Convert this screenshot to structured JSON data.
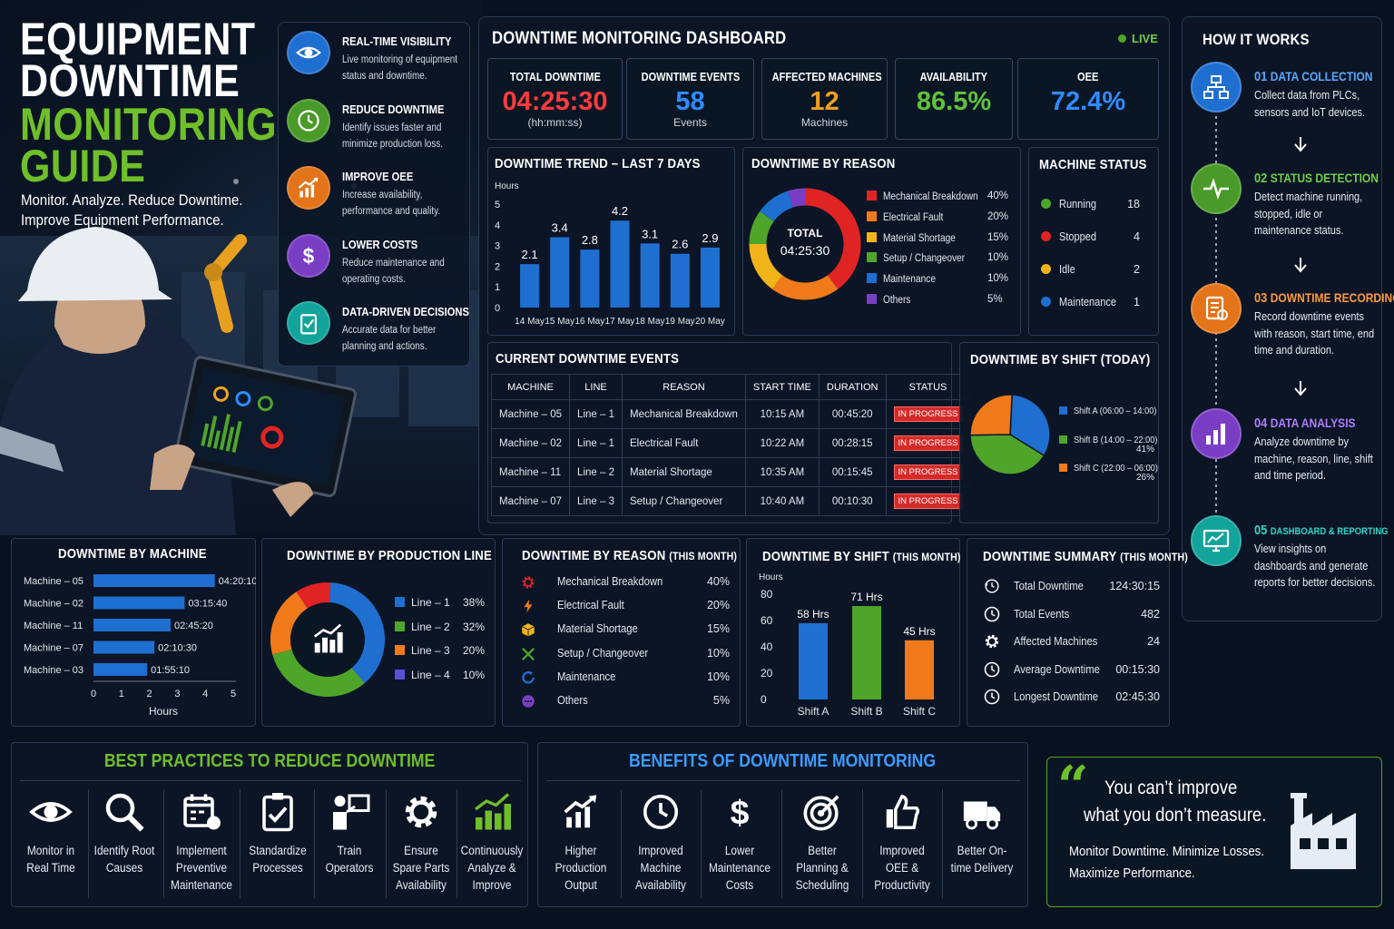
{
  "hero": {
    "title_lines": [
      "EQUIPMENT",
      "DOWNTIME",
      "MONITORING",
      "GUIDE"
    ],
    "tagline1": "Monitor. Analyze. Reduce Downtime.",
    "tagline2": "Improve Equipment Performance."
  },
  "features": [
    {
      "title": "REAL-TIME VISIBILITY",
      "desc": "Live monitoring of equipment status and downtime.",
      "icon": "eye-icon",
      "color": "#1f6fd1"
    },
    {
      "title": "REDUCE DOWNTIME",
      "desc": "Identify issues faster and minimize production loss.",
      "icon": "clock-icon",
      "color": "#4a9a2a"
    },
    {
      "title": "IMPROVE OEE",
      "desc": "Increase availability, performance and quality.",
      "icon": "chart-up-icon",
      "color": "#e3741a"
    },
    {
      "title": "LOWER COSTS",
      "desc": "Reduce maintenance and operating costs.",
      "icon": "dollar-icon",
      "color": "#7a3ec4"
    },
    {
      "title": "DATA-DRIVEN DECISIONS",
      "desc": "Accurate data for better planning and actions.",
      "icon": "clipboard-icon",
      "color": "#12a39a"
    }
  ],
  "dashboard": {
    "title": "DOWNTIME MONITORING DASHBOARD",
    "live": "LIVE",
    "kpis": [
      {
        "label": "TOTAL DOWNTIME",
        "value": "04:25:30",
        "sub": "(hh:mm:ss)",
        "color": "#ff3b3b"
      },
      {
        "label": "DOWNTIME EVENTS",
        "value": "58",
        "sub": "Events",
        "color": "#2f8cff"
      },
      {
        "label": "AFFECTED MACHINES",
        "value": "12",
        "sub": "Machines",
        "color": "#f0a020"
      },
      {
        "label": "AVAILABILITY",
        "value": "86.5%",
        "sub": "",
        "color": "#5fc23a"
      },
      {
        "label": "OEE",
        "value": "72.4%",
        "sub": "",
        "color": "#2f8cff"
      }
    ]
  },
  "trend": {
    "title": "DOWNTIME TREND – LAST 7 DAYS",
    "ylabel": "Hours",
    "yticks": [
      "5",
      "4",
      "3",
      "2",
      "1",
      "0"
    ]
  },
  "reason_donut": {
    "title": "DOWNTIME BY REASON",
    "center_label": "TOTAL",
    "center_value": "04:25:30",
    "items": [
      {
        "label": "Mechanical Breakdown",
        "pct": "40%",
        "value": 40,
        "color": "#e02424"
      },
      {
        "label": "Electrical Fault",
        "pct": "20%",
        "value": 20,
        "color": "#f07a1a"
      },
      {
        "label": "Material Shortage",
        "pct": "15%",
        "value": 15,
        "color": "#f0b41a"
      },
      {
        "label": "Setup / Changeover",
        "pct": "10%",
        "value": 10,
        "color": "#4fa52a"
      },
      {
        "label": "Maintenance",
        "pct": "10%",
        "value": 10,
        "color": "#1f6fd1"
      },
      {
        "label": "Others",
        "pct": "5%",
        "value": 5,
        "color": "#7a3ec4"
      }
    ]
  },
  "machine_status": {
    "title": "MACHINE STATUS",
    "items": [
      {
        "label": "Running",
        "count": "18",
        "color": "#4fa52a"
      },
      {
        "label": "Stopped",
        "count": "4",
        "color": "#e02424"
      },
      {
        "label": "Idle",
        "count": "2",
        "color": "#f0b41a"
      },
      {
        "label": "Maintenance",
        "count": "1",
        "color": "#1f6fd1"
      }
    ]
  },
  "events": {
    "title": "CURRENT DOWNTIME EVENTS",
    "headers": [
      "MACHINE",
      "LINE",
      "REASON",
      "START TIME",
      "DURATION",
      "STATUS"
    ],
    "rows": [
      [
        "Machine – 05",
        "Line – 1",
        "Mechanical Breakdown",
        "10:15 AM",
        "00:45:20",
        "IN PROGRESS"
      ],
      [
        "Machine – 02",
        "Line – 1",
        "Electrical Fault",
        "10:22 AM",
        "00:28:15",
        "IN PROGRESS"
      ],
      [
        "Machine – 11",
        "Line – 2",
        "Material Shortage",
        "10:35 AM",
        "00:15:45",
        "IN PROGRESS"
      ],
      [
        "Machine – 07",
        "Line – 3",
        "Setup / Changeover",
        "10:40 AM",
        "00:10:30",
        "IN PROGRESS"
      ]
    ]
  },
  "shift_today": {
    "title": "DOWNTIME BY SHIFT (TODAY)",
    "items": [
      {
        "label": "Shift A (06:00 – 14:00)",
        "pct": "",
        "color": "#1f6fd1"
      },
      {
        "label": "Shift B (14:00 – 22:00)",
        "pct": "41%",
        "color": "#4fa52a"
      },
      {
        "label": "Shift C (22:00 – 06:00)",
        "pct": "26%",
        "color": "#f07a1a"
      }
    ]
  },
  "by_machine": {
    "title": "DOWNTIME BY MACHINE",
    "xlabel": "Hours",
    "xticks": [
      "0",
      "1",
      "2",
      "3",
      "4",
      "5"
    ]
  },
  "by_line": {
    "title": "DOWNTIME BY PRODUCTION LINE",
    "items": [
      {
        "label": "Line – 1",
        "pct": "38%",
        "value": 38,
        "color": "#1f6fd1"
      },
      {
        "label": "Line – 2",
        "pct": "32%",
        "value": 32,
        "color": "#4fa52a"
      },
      {
        "label": "Line – 3",
        "pct": "20%",
        "value": 20,
        "color": "#f07a1a"
      },
      {
        "label": "Line – 4",
        "pct": "10%",
        "value": 10,
        "color": "#e02424"
      }
    ],
    "legend_colors": [
      "#1f6fd1",
      "#4fa52a",
      "#f07a1a",
      "#5a4fd6"
    ]
  },
  "reason_month": {
    "title": "DOWNTIME BY REASON",
    "title_suffix": "(THIS MONTH)",
    "items": [
      {
        "label": "Mechanical Breakdown",
        "pct": "40%",
        "icon": "gear-icon",
        "color": "#e02424"
      },
      {
        "label": "Electrical Fault",
        "pct": "20%",
        "icon": "bolt-icon",
        "color": "#f07a1a"
      },
      {
        "label": "Material Shortage",
        "pct": "15%",
        "icon": "box-icon",
        "color": "#f0b41a"
      },
      {
        "label": "Setup / Changeover",
        "pct": "10%",
        "icon": "tools-icon",
        "color": "#4fa52a"
      },
      {
        "label": "Maintenance",
        "pct": "10%",
        "icon": "refresh-icon",
        "color": "#1f6fd1"
      },
      {
        "label": "Others",
        "pct": "5%",
        "icon": "dots-icon",
        "color": "#7a3ec4"
      }
    ]
  },
  "shift_month": {
    "title": "DOWNTIME BY SHIFT",
    "title_suffix": "(THIS MONTH)",
    "ylabel": "Hours",
    "yticks": [
      "80",
      "60",
      "40",
      "20",
      "0"
    ]
  },
  "summary": {
    "title": "DOWNTIME SUMMARY",
    "title_suffix": "(THIS MONTH)",
    "items": [
      {
        "label": "Total Downtime",
        "value": "124:30:15",
        "icon": "history-icon"
      },
      {
        "label": "Total Events",
        "value": "482",
        "icon": "clock-icon"
      },
      {
        "label": "Affected Machines",
        "value": "24",
        "icon": "gear-icon"
      },
      {
        "label": "Average Downtime",
        "value": "00:15:30",
        "icon": "clock-icon"
      },
      {
        "label": "Longest Downtime",
        "value": "02:45:30",
        "icon": "clock-icon"
      }
    ]
  },
  "how": {
    "title": "HOW IT WORKS",
    "steps": [
      {
        "num": "01",
        "title": "DATA COLLECTION",
        "desc": "Collect data from PLCs, sensors and IoT devices.",
        "color": "#1f6fd1",
        "text_color": "#5aa8ff",
        "icon": "network-icon"
      },
      {
        "num": "02",
        "title": "STATUS DETECTION",
        "desc": "Detect machine running, stopped, idle or maintenance status.",
        "color": "#4a9a2a",
        "text_color": "#6fcf45",
        "icon": "pulse-icon"
      },
      {
        "num": "03",
        "title": "DOWNTIME RECORDING",
        "desc": "Record downtime events with reason, start time, end time and duration.",
        "color": "#e3741a",
        "text_color": "#ff9a3a",
        "icon": "document-icon"
      },
      {
        "num": "04",
        "title": "DATA ANALYSIS",
        "desc": "Analyze downtime by machine, reason, line, shift and time period.",
        "color": "#7a3ec4",
        "text_color": "#b07cff",
        "icon": "bar-chart-icon"
      },
      {
        "num": "05",
        "title": "DASHBOARD & REPORTING",
        "desc": "View insights on dashboards and generate reports for better decisions.",
        "color": "#12a39a",
        "text_color": "#2fd4c8",
        "icon": "monitor-icon"
      }
    ]
  },
  "best_practices": {
    "title": "BEST PRACTICES TO REDUCE DOWNTIME",
    "items": [
      {
        "label": "Monitor in Real Time",
        "icon": "eye-icon"
      },
      {
        "label": "Identify Root Causes",
        "icon": "search-icon"
      },
      {
        "label": "Implement Preventive Maintenance",
        "icon": "calendar-icon"
      },
      {
        "label": "Standardize Processes",
        "icon": "checklist-icon"
      },
      {
        "label": "Train Operators",
        "icon": "trainer-icon"
      },
      {
        "label": "Ensure Spare Parts Availability",
        "icon": "gear-icon"
      },
      {
        "label": "Continuously Analyze & Improve",
        "icon": "growth-icon"
      }
    ]
  },
  "benefits": {
    "title": "BENEFITS OF DOWNTIME MONITORING",
    "items": [
      {
        "label": "Higher Production Output",
        "icon": "chart-up-icon"
      },
      {
        "label": "Improved Machine Availability",
        "icon": "clock-icon"
      },
      {
        "label": "Lower Maintenance Costs",
        "icon": "dollar-icon"
      },
      {
        "label": "Better Planning & Scheduling",
        "icon": "target-icon"
      },
      {
        "label": "Improved OEE & Productivity",
        "icon": "thumbs-up-icon"
      },
      {
        "label": "Better On-time Delivery",
        "icon": "truck-icon"
      }
    ]
  },
  "quote": {
    "line1": "You can’t improve",
    "line2": "what you don’t measure.",
    "sub1": "Monitor Downtime. Minimize Losses.",
    "sub2": "Maximize Performance."
  },
  "chart_data": [
    {
      "type": "bar",
      "title": "DOWNTIME TREND – LAST 7 DAYS",
      "ylabel": "Hours",
      "categories": [
        "14 May",
        "15 May",
        "16 May",
        "17 May",
        "18 May",
        "19 May",
        "20 May"
      ],
      "values": [
        2.1,
        3.4,
        2.8,
        4.2,
        3.1,
        2.6,
        2.9
      ],
      "ylim": [
        0,
        5
      ],
      "color": "#1f6fd1"
    },
    {
      "type": "bar",
      "orientation": "horizontal",
      "title": "DOWNTIME BY MACHINE",
      "xlabel": "Hours",
      "categories": [
        "Machine – 05",
        "Machine – 02",
        "Machine – 11",
        "Machine – 07",
        "Machine – 03"
      ],
      "labels": [
        "04:20:10",
        "03:15:40",
        "02:45:20",
        "02:10:30",
        "01:55:10"
      ],
      "values": [
        4.34,
        3.26,
        2.76,
        2.18,
        1.92
      ],
      "xlim": [
        0,
        5
      ],
      "color": "#1f6fd1"
    },
    {
      "type": "bar",
      "title": "DOWNTIME BY SHIFT (THIS MONTH)",
      "ylabel": "Hours",
      "categories": [
        "Shift A",
        "Shift B",
        "Shift C"
      ],
      "labels": [
        "58 Hrs",
        "71 Hrs",
        "45 Hrs"
      ],
      "values": [
        58,
        71,
        45
      ],
      "colors": [
        "#1f6fd1",
        "#4fa52a",
        "#f07a1a"
      ],
      "ylim": [
        0,
        80
      ]
    },
    {
      "type": "pie",
      "title": "DOWNTIME BY SHIFT (TODAY)",
      "categories": [
        "Shift A (06:00 – 14:00)",
        "Shift B (14:00 – 22:00)",
        "Shift C (22:00 – 06:00)"
      ],
      "values": [
        33,
        41,
        26
      ],
      "colors": [
        "#1f6fd1",
        "#4fa52a",
        "#f07a1a"
      ]
    }
  ]
}
